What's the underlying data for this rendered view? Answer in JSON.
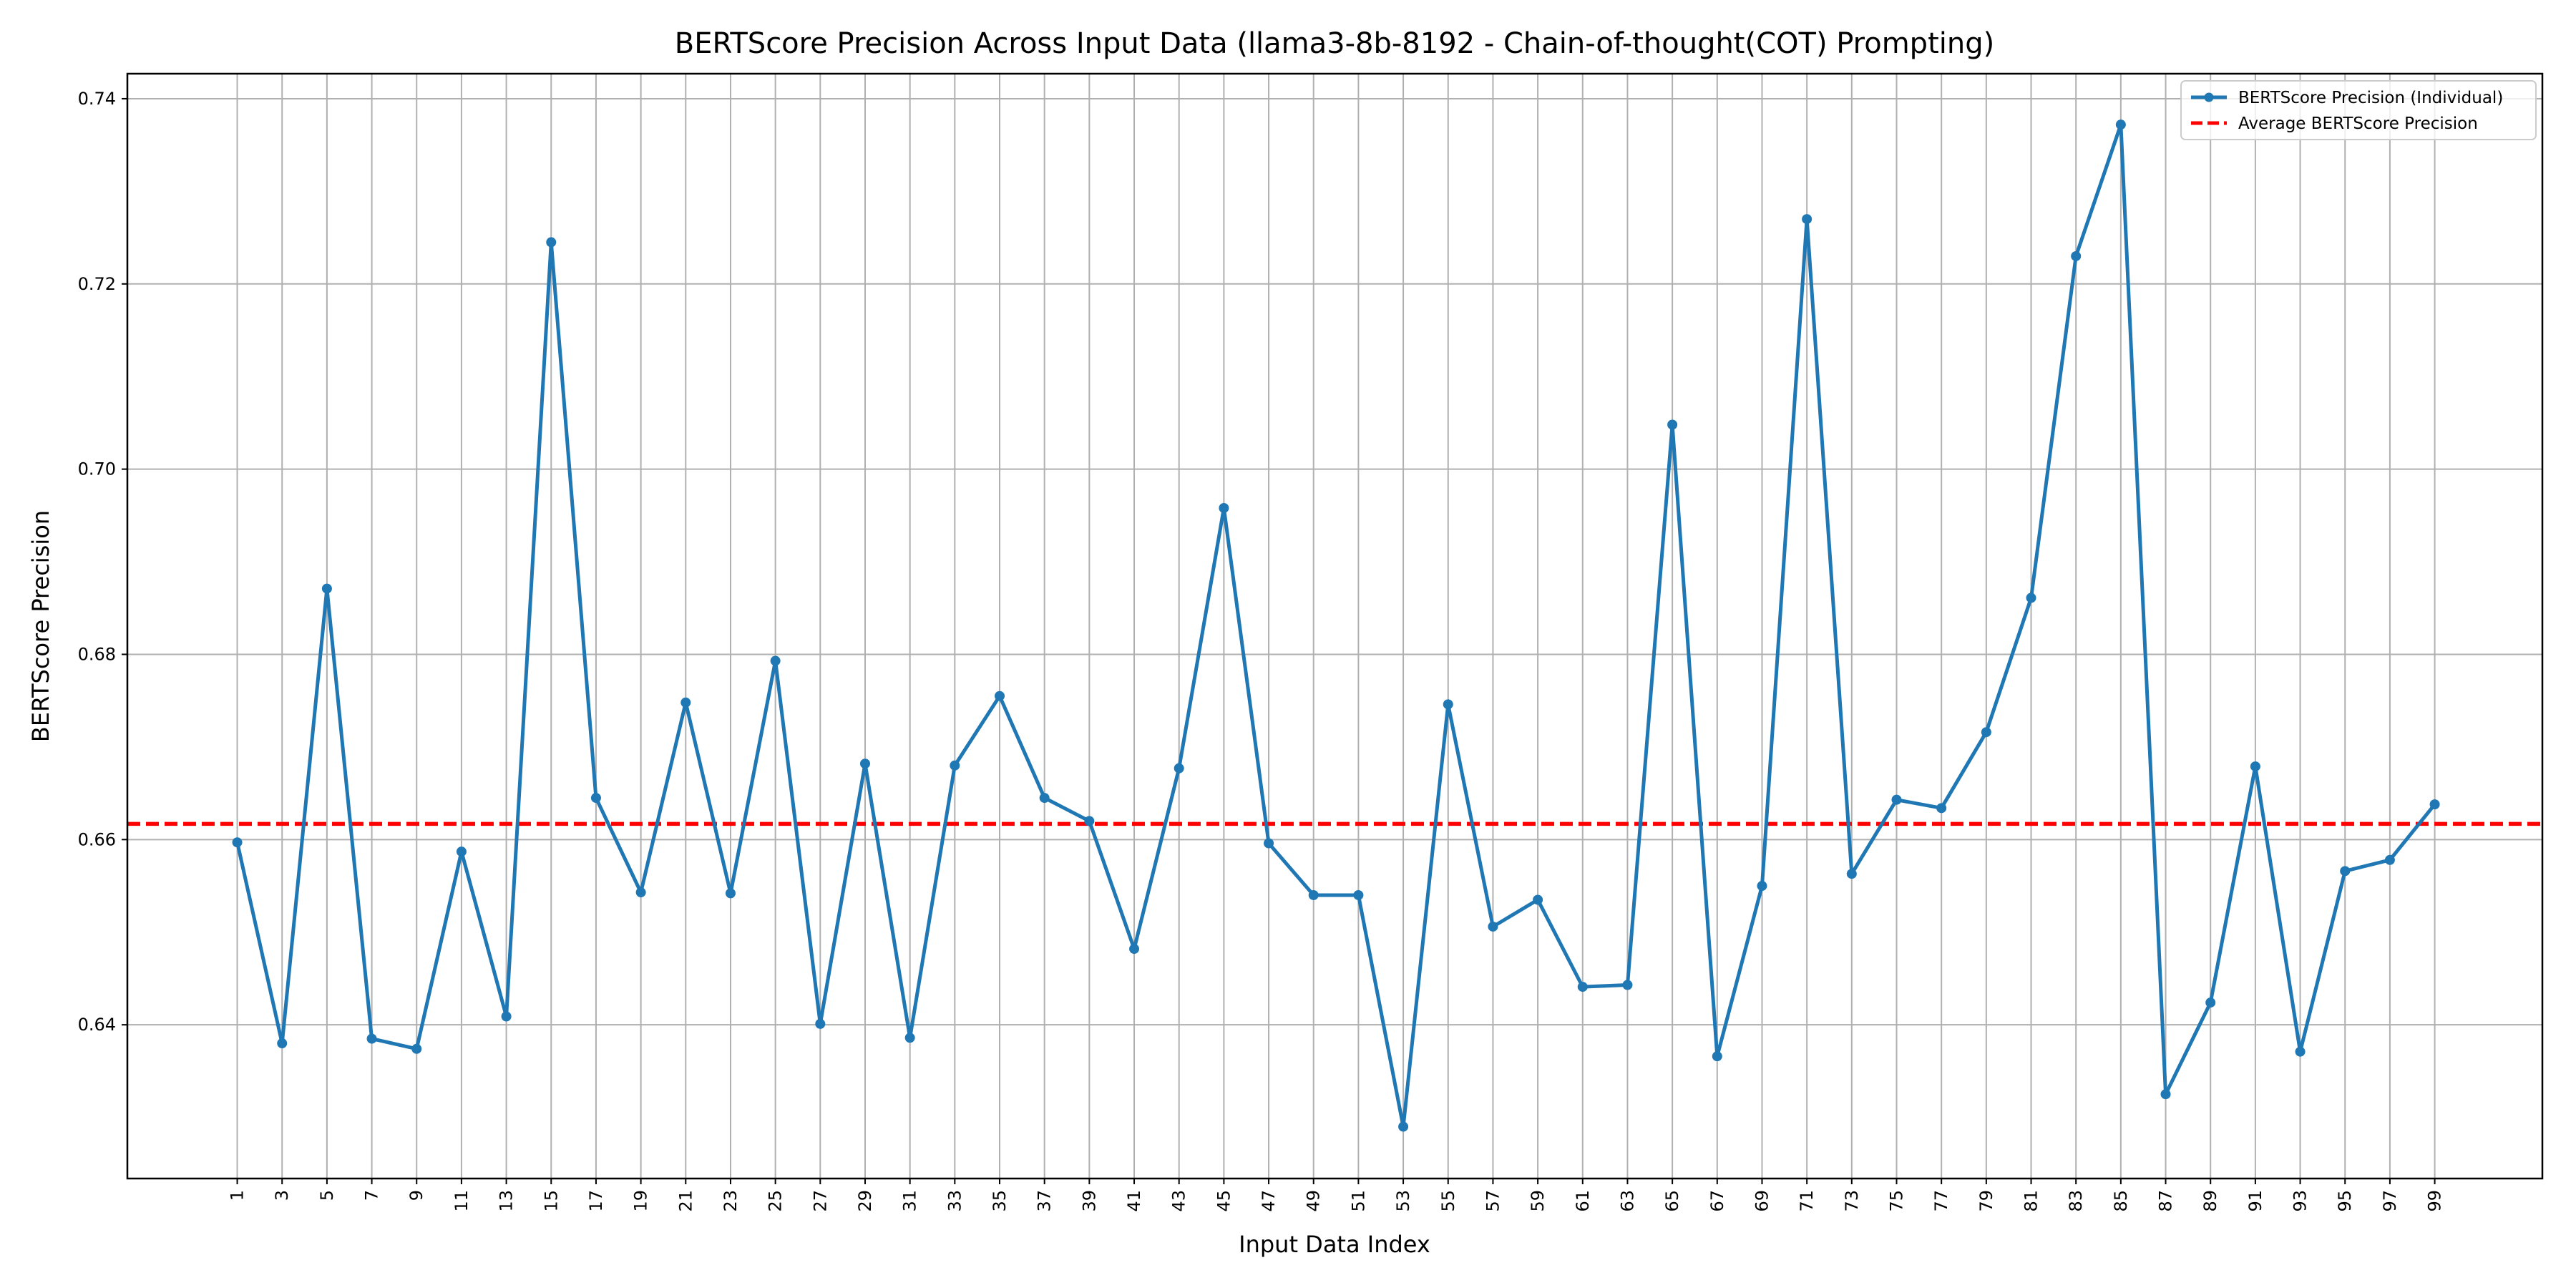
{
  "chart_data": {
    "type": "line",
    "title": "BERTScore Precision Across Input Data (llama3-8b-8192 - Chain-of-thought(COT) Prompting)",
    "xlabel": "Input Data Index",
    "ylabel": "BERTScore Precision",
    "x": [
      1,
      3,
      5,
      7,
      9,
      11,
      13,
      15,
      17,
      19,
      21,
      23,
      25,
      27,
      29,
      31,
      33,
      35,
      37,
      39,
      41,
      43,
      45,
      47,
      49,
      51,
      53,
      55,
      57,
      59,
      61,
      63,
      65,
      67,
      69,
      71,
      73,
      75,
      77,
      79,
      81,
      83,
      85,
      87,
      89,
      91,
      93,
      95,
      97,
      99
    ],
    "series": [
      {
        "name": "BERTScore Precision (Individual)",
        "color": "#1f77b4",
        "style": "solid-with-markers",
        "values": [
          0.6597,
          0.638,
          0.6871,
          0.6385,
          0.6374,
          0.6587,
          0.6409,
          0.7245,
          0.6645,
          0.6543,
          0.6748,
          0.6542,
          0.6793,
          0.6401,
          0.6682,
          0.6386,
          0.668,
          0.6755,
          0.6645,
          0.662,
          0.6482,
          0.6677,
          0.6958,
          0.6596,
          0.654,
          0.654,
          0.629,
          0.6746,
          0.6506,
          0.6535,
          0.6441,
          0.6443,
          0.7048,
          0.6366,
          0.655,
          0.727,
          0.6563,
          0.6643,
          0.6634,
          0.6716,
          0.6861,
          0.723,
          0.7372,
          0.6325,
          0.6424,
          0.6679,
          0.6371,
          0.6566,
          0.6578,
          0.6638
        ]
      },
      {
        "name": "Average BERTScore Precision",
        "color": "#ff0000",
        "style": "dashed",
        "value": 0.6617
      }
    ],
    "xlim": [
      -3.9,
      103.8
    ],
    "ylim": [
      0.6234,
      0.7427
    ],
    "yticks": [
      "0.64",
      "0.66",
      "0.68",
      "0.70",
      "0.72",
      "0.74"
    ],
    "ytick_values": [
      0.64,
      0.66,
      0.68,
      0.7,
      0.72,
      0.74
    ],
    "grid": true,
    "legend_position": "top-right"
  }
}
